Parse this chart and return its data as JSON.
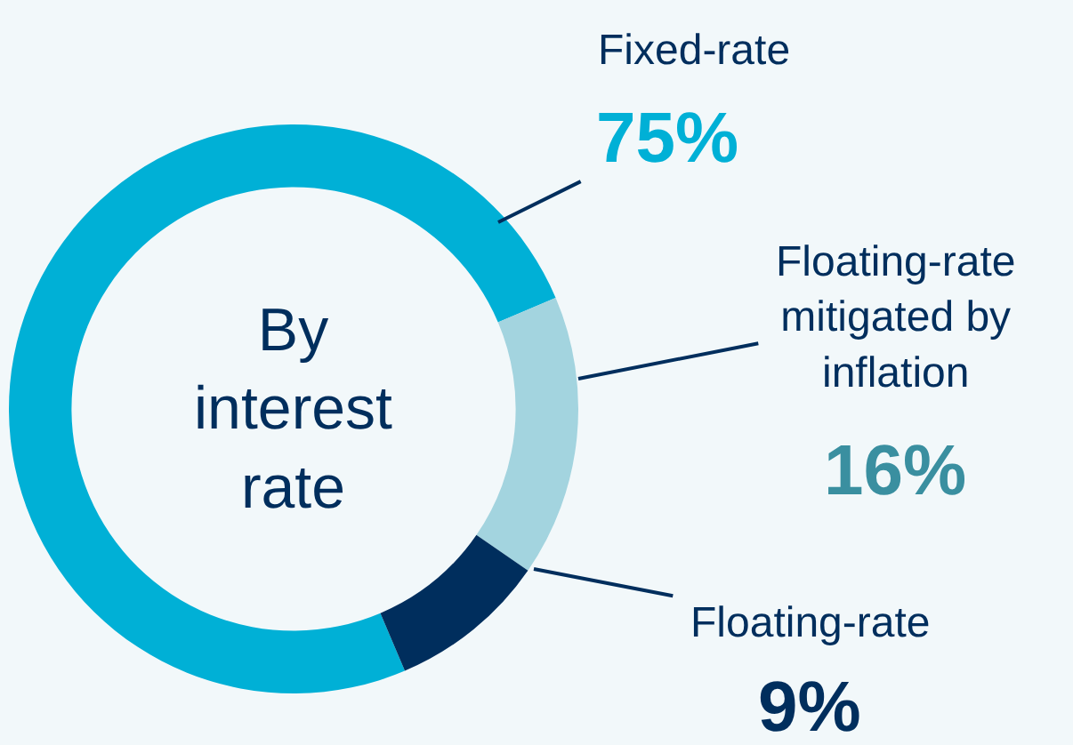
{
  "chart_data": {
    "type": "donut",
    "categories": [
      "Fixed-rate",
      "Floating-rate mitigated by inflation",
      "Floating-rate"
    ],
    "values": [
      75,
      16,
      9
    ],
    "colors": [
      "#00b0d6",
      "#a3d4df",
      "#002e5d"
    ],
    "value_labels": [
      "75%",
      "16%",
      "9%"
    ],
    "annotations": [
      "By interest rate"
    ],
    "legend": false
  }
}
